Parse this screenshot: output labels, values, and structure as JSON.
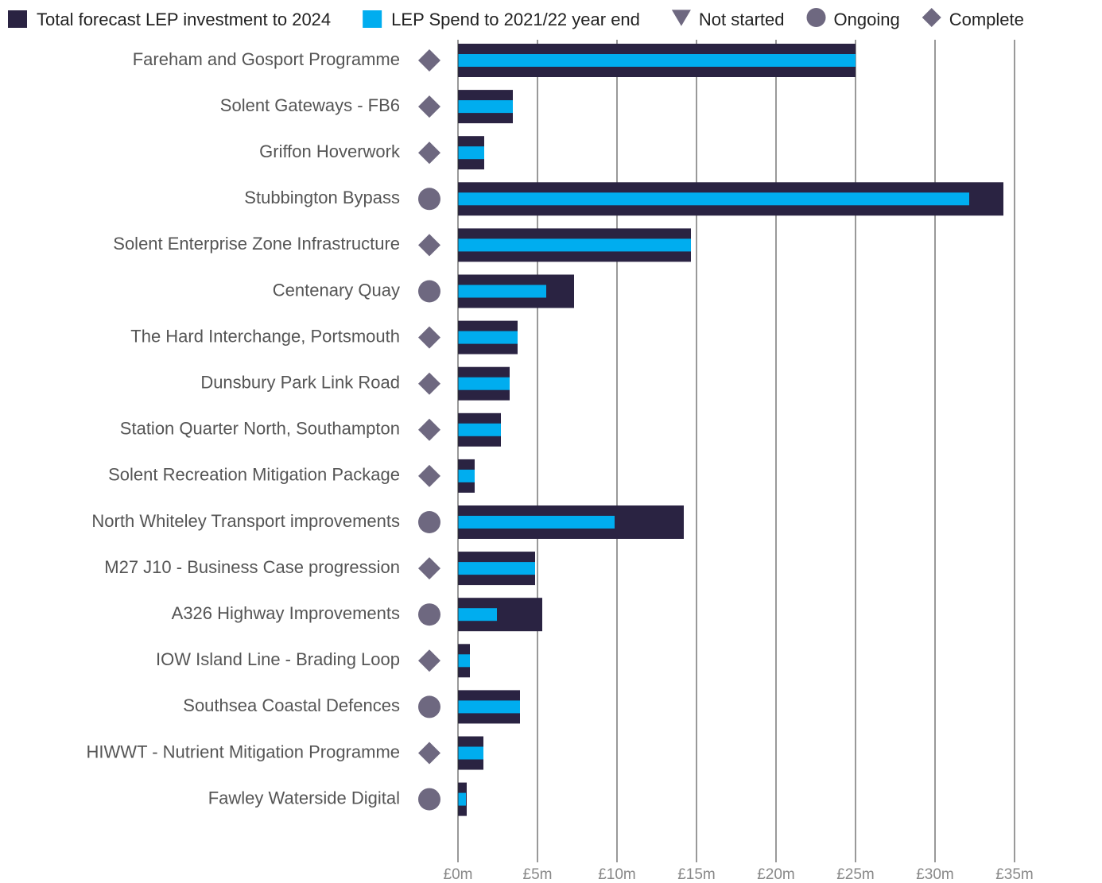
{
  "chart_data": {
    "type": "bar",
    "orientation": "horizontal",
    "categories": [
      "Fareham and Gosport Programme",
      "Solent Gateways - FB6",
      "Griffon Hoverwork",
      "Stubbington Bypass",
      "Solent Enterprise Zone Infrastructure",
      "Centenary Quay",
      "The Hard Interchange, Portsmouth",
      "Dunsbury Park Link Road",
      "Station Quarter North, Southampton",
      "Solent Recreation Mitigation Package",
      "North Whiteley Transport improvements",
      "M27 J10 - Business Case progression",
      "A326 Highway Improvements",
      "IOW Island Line - Brading Loop",
      "Southsea Coastal Defences",
      "HIWWT - Nutrient Mitigation Programme",
      "Fawley Waterside Digital"
    ],
    "series": [
      {
        "name": "Total forecast LEP investment to 2024",
        "color": "#2a2342",
        "values": [
          25,
          3.45,
          1.65,
          34.3,
          14.65,
          7.3,
          3.75,
          3.25,
          2.7,
          1.05,
          14.2,
          4.85,
          5.3,
          0.75,
          3.9,
          1.6,
          0.55
        ]
      },
      {
        "name": "LEP Spend to 2021/22 year end",
        "color": "#00adef",
        "values": [
          25,
          3.45,
          1.65,
          32.15,
          14.65,
          5.55,
          3.75,
          3.25,
          2.7,
          1.05,
          9.85,
          4.85,
          2.45,
          0.75,
          3.9,
          1.6,
          0.5
        ]
      }
    ],
    "status_legend": [
      {
        "name": "Not started",
        "shape": "triangle"
      },
      {
        "name": "Ongoing",
        "shape": "circle"
      },
      {
        "name": "Complete",
        "shape": "diamond"
      }
    ],
    "status_color": "#6e6880",
    "status": [
      "Complete",
      "Complete",
      "Complete",
      "Ongoing",
      "Complete",
      "Ongoing",
      "Complete",
      "Complete",
      "Complete",
      "Complete",
      "Ongoing",
      "Complete",
      "Ongoing",
      "Complete",
      "Ongoing",
      "Complete",
      "Ongoing"
    ],
    "xlim": [
      0,
      35
    ],
    "xticks": [
      {
        "value": 0,
        "label": "£0m"
      },
      {
        "value": 5,
        "label": "£5m"
      },
      {
        "value": 10,
        "label": "£10m"
      },
      {
        "value": 15,
        "label": "£15m"
      },
      {
        "value": 20,
        "label": "£20m"
      },
      {
        "value": 25,
        "label": "£25m"
      },
      {
        "value": 30,
        "label": "£30m"
      },
      {
        "value": 35,
        "label": "£35m"
      }
    ],
    "grid": true,
    "legend": "top"
  }
}
